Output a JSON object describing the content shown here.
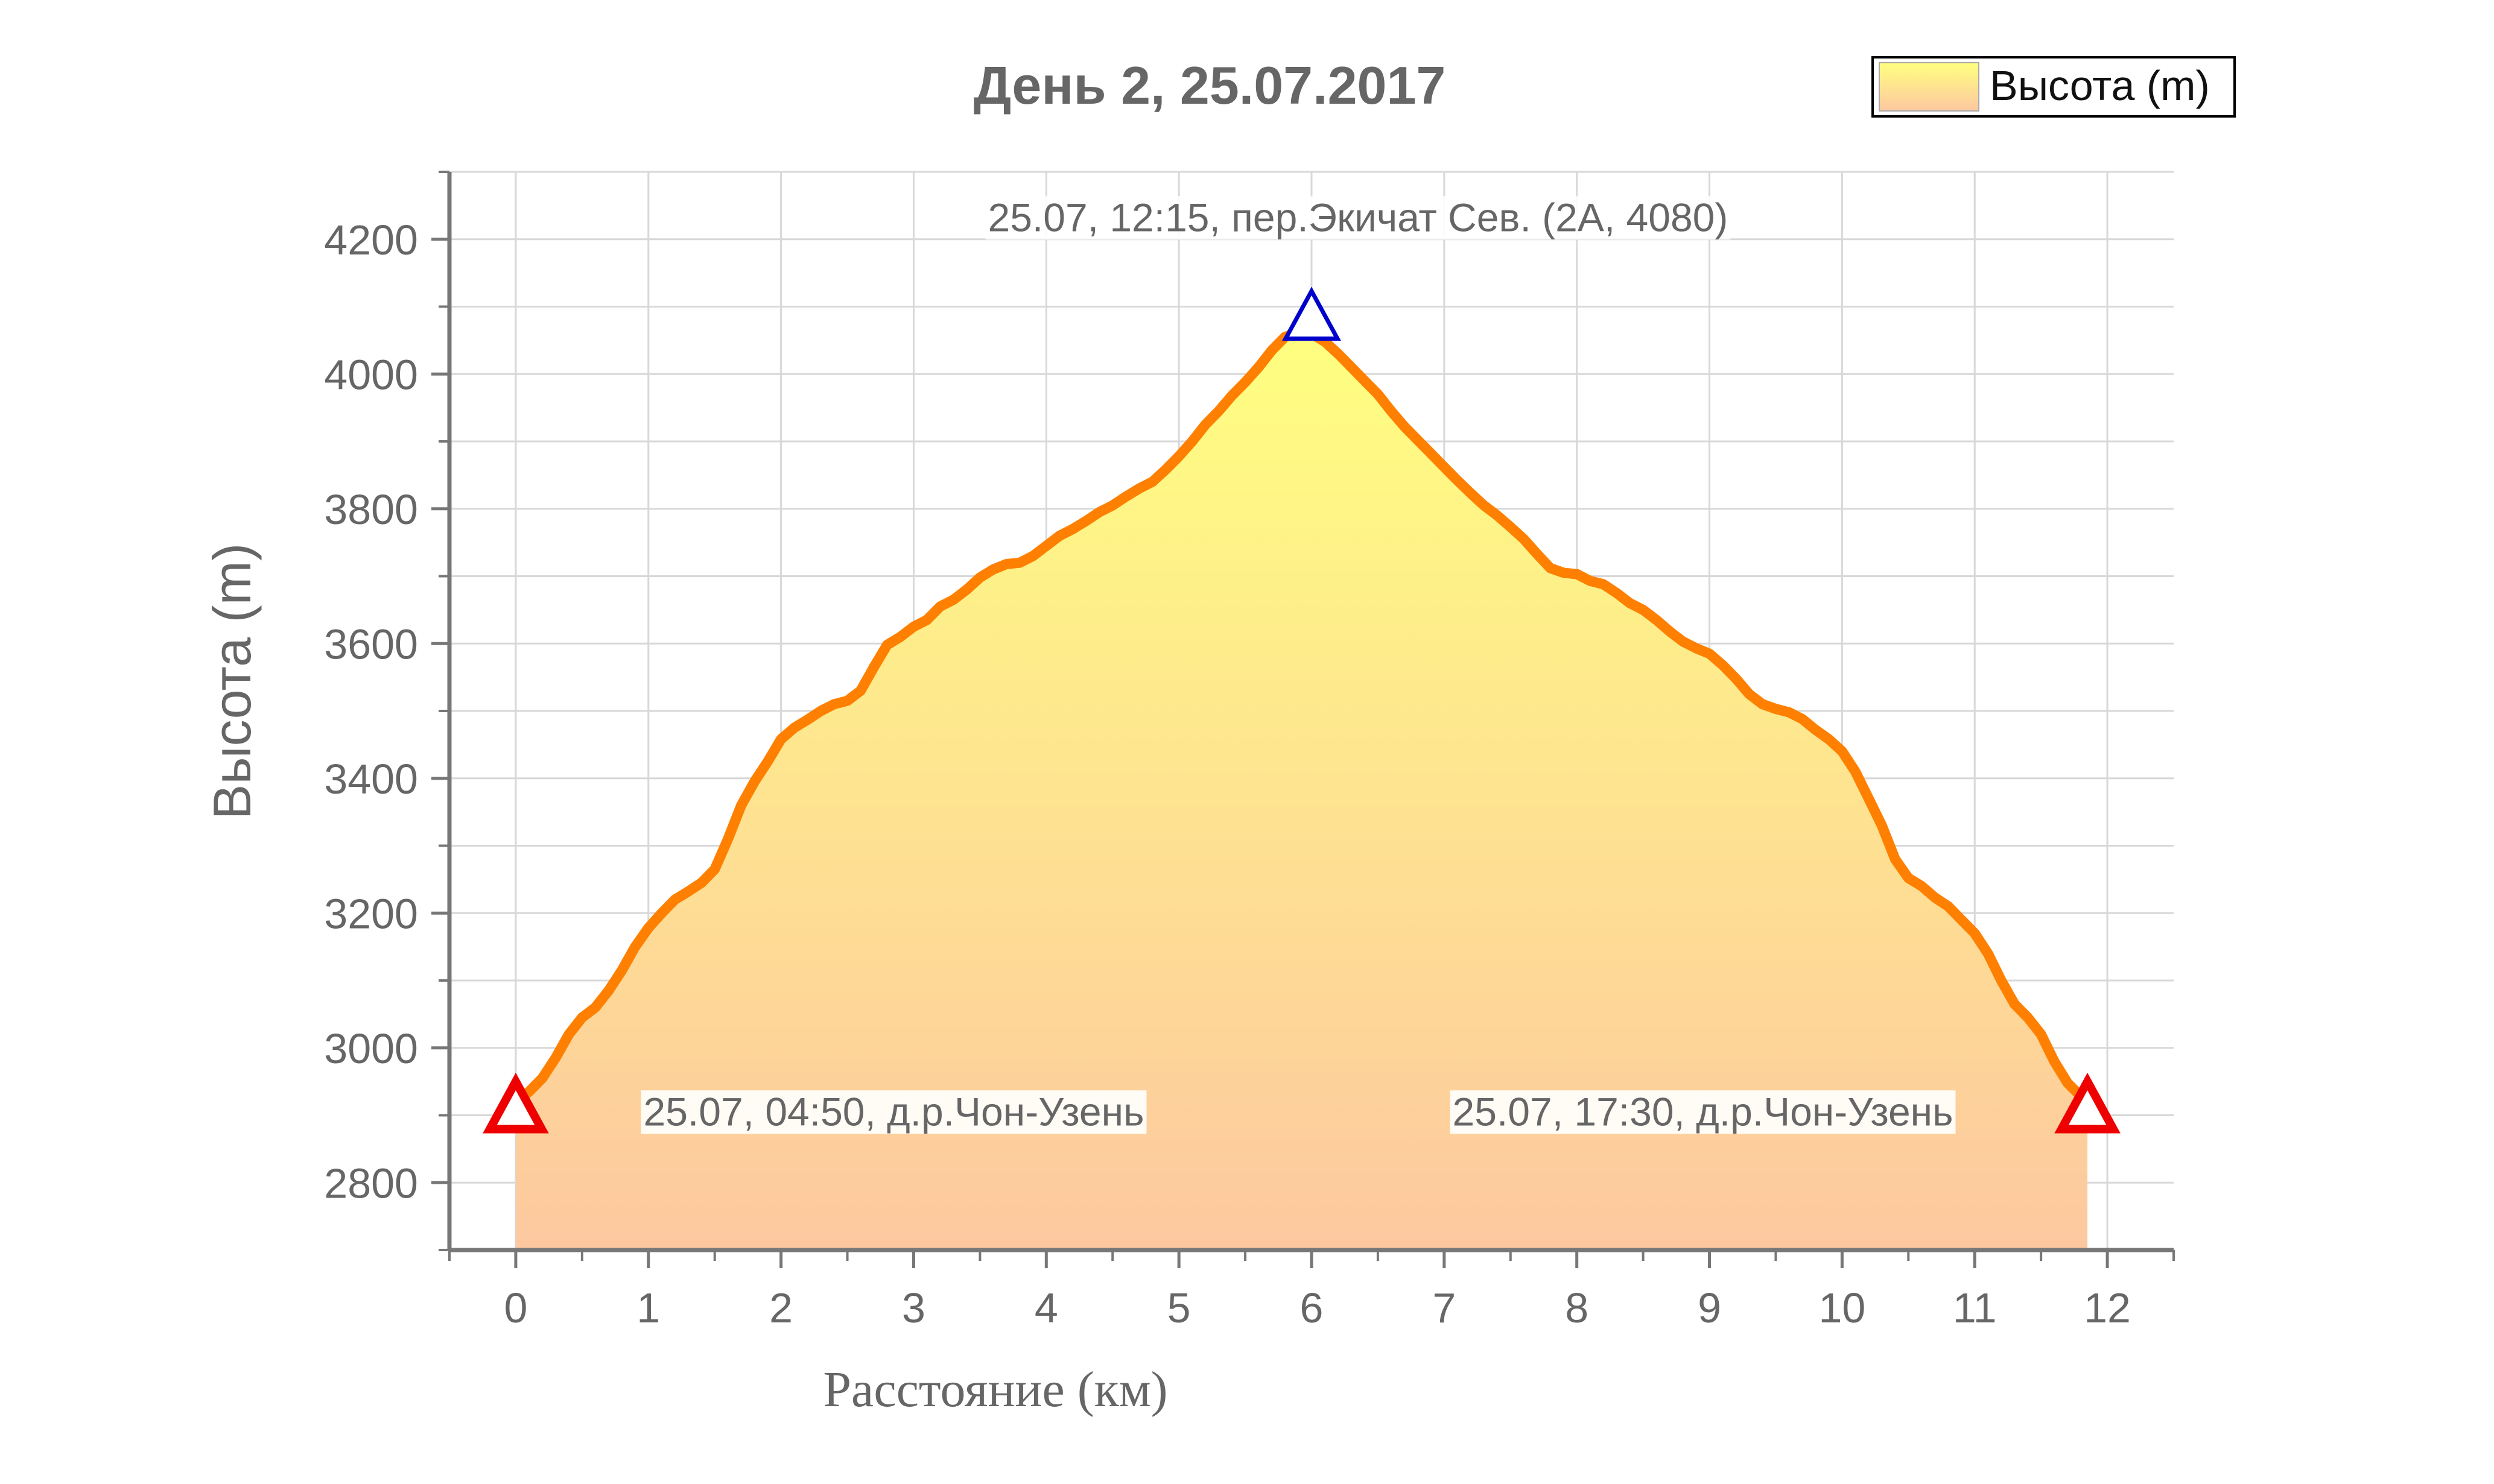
{
  "chart_data": {
    "type": "area",
    "title": "День 2, 25.07.2017",
    "xlabel": "Расстояние (км)",
    "ylabel": "Высота (m)",
    "xlim": [
      -0.5,
      12.5
    ],
    "ylim": [
      2700,
      4300
    ],
    "x_ticks": [
      "0",
      "1",
      "2",
      "3",
      "4",
      "5",
      "6",
      "7",
      "8",
      "9",
      "10",
      "11",
      "12"
    ],
    "y_ticks": [
      "2800",
      "3000",
      "3200",
      "3400",
      "3600",
      "3800",
      "4000",
      "4200"
    ],
    "grid": true,
    "legend": {
      "placement": "top-right",
      "label": "Высота (m)"
    },
    "colors": {
      "line": "#ff8000",
      "fill_top": "#ffff80",
      "fill_bottom": "#fdc8a0",
      "grid": "#d8d8d8",
      "axis": "#777777",
      "text": "#666666",
      "marker_red": "#ee0000",
      "marker_blue": "#0000cc"
    },
    "series": [
      {
        "name": "Высота (m)",
        "points": [
          [
            0.0,
            2920
          ],
          [
            0.1,
            2935
          ],
          [
            0.2,
            2955
          ],
          [
            0.3,
            2985
          ],
          [
            0.4,
            3020
          ],
          [
            0.5,
            3045
          ],
          [
            0.6,
            3060
          ],
          [
            0.7,
            3085
          ],
          [
            0.8,
            3115
          ],
          [
            0.9,
            3150
          ],
          [
            1.0,
            3178
          ],
          [
            1.1,
            3200
          ],
          [
            1.2,
            3220
          ],
          [
            1.3,
            3232
          ],
          [
            1.4,
            3245
          ],
          [
            1.5,
            3265
          ],
          [
            1.6,
            3310
          ],
          [
            1.7,
            3360
          ],
          [
            1.8,
            3395
          ],
          [
            1.9,
            3425
          ],
          [
            2.0,
            3458
          ],
          [
            2.1,
            3475
          ],
          [
            2.2,
            3487
          ],
          [
            2.3,
            3500
          ],
          [
            2.4,
            3510
          ],
          [
            2.5,
            3515
          ],
          [
            2.6,
            3530
          ],
          [
            2.7,
            3565
          ],
          [
            2.8,
            3598
          ],
          [
            2.9,
            3610
          ],
          [
            3.0,
            3625
          ],
          [
            3.1,
            3635
          ],
          [
            3.2,
            3655
          ],
          [
            3.3,
            3665
          ],
          [
            3.4,
            3680
          ],
          [
            3.5,
            3698
          ],
          [
            3.6,
            3710
          ],
          [
            3.7,
            3718
          ],
          [
            3.8,
            3720
          ],
          [
            3.9,
            3730
          ],
          [
            4.0,
            3745
          ],
          [
            4.1,
            3760
          ],
          [
            4.2,
            3770
          ],
          [
            4.3,
            3782
          ],
          [
            4.4,
            3795
          ],
          [
            4.5,
            3805
          ],
          [
            4.6,
            3818
          ],
          [
            4.7,
            3830
          ],
          [
            4.8,
            3840
          ],
          [
            4.9,
            3858
          ],
          [
            5.0,
            3878
          ],
          [
            5.1,
            3900
          ],
          [
            5.2,
            3925
          ],
          [
            5.3,
            3945
          ],
          [
            5.4,
            3968
          ],
          [
            5.5,
            3988
          ],
          [
            5.6,
            4010
          ],
          [
            5.7,
            4035
          ],
          [
            5.8,
            4055
          ],
          [
            5.9,
            4062
          ],
          [
            6.0,
            4060
          ],
          [
            6.1,
            4048
          ],
          [
            6.2,
            4030
          ],
          [
            6.3,
            4010
          ],
          [
            6.4,
            3990
          ],
          [
            6.5,
            3970
          ],
          [
            6.6,
            3945
          ],
          [
            6.7,
            3922
          ],
          [
            6.8,
            3902
          ],
          [
            6.9,
            3882
          ],
          [
            7.0,
            3862
          ],
          [
            7.1,
            3842
          ],
          [
            7.2,
            3823
          ],
          [
            7.3,
            3805
          ],
          [
            7.4,
            3790
          ],
          [
            7.5,
            3773
          ],
          [
            7.6,
            3755
          ],
          [
            7.7,
            3733
          ],
          [
            7.8,
            3712
          ],
          [
            7.9,
            3705
          ],
          [
            8.0,
            3703
          ],
          [
            8.1,
            3693
          ],
          [
            8.2,
            3688
          ],
          [
            8.3,
            3675
          ],
          [
            8.4,
            3660
          ],
          [
            8.5,
            3650
          ],
          [
            8.6,
            3635
          ],
          [
            8.7,
            3618
          ],
          [
            8.8,
            3603
          ],
          [
            8.9,
            3593
          ],
          [
            9.0,
            3585
          ],
          [
            9.1,
            3568
          ],
          [
            9.2,
            3548
          ],
          [
            9.3,
            3525
          ],
          [
            9.4,
            3510
          ],
          [
            9.5,
            3503
          ],
          [
            9.6,
            3498
          ],
          [
            9.7,
            3488
          ],
          [
            9.8,
            3472
          ],
          [
            9.9,
            3458
          ],
          [
            10.0,
            3440
          ],
          [
            10.1,
            3410
          ],
          [
            10.2,
            3370
          ],
          [
            10.3,
            3330
          ],
          [
            10.4,
            3280
          ],
          [
            10.5,
            3252
          ],
          [
            10.6,
            3240
          ],
          [
            10.7,
            3223
          ],
          [
            10.8,
            3210
          ],
          [
            10.9,
            3190
          ],
          [
            11.0,
            3170
          ],
          [
            11.1,
            3140
          ],
          [
            11.2,
            3100
          ],
          [
            11.3,
            3065
          ],
          [
            11.4,
            3045
          ],
          [
            11.5,
            3020
          ],
          [
            11.6,
            2980
          ],
          [
            11.7,
            2948
          ],
          [
            11.8,
            2928
          ],
          [
            11.85,
            2920
          ]
        ]
      }
    ],
    "markers": [
      {
        "x": 0.0,
        "y": 2913,
        "shape": "triangle",
        "color": "#ee0000"
      },
      {
        "x": 6.0,
        "y": 4086,
        "shape": "triangle",
        "color": "#0000cc"
      },
      {
        "x": 11.85,
        "y": 2913,
        "shape": "triangle",
        "color": "#ee0000"
      }
    ],
    "annotations": [
      {
        "text": "25.07, 12:15, пер.Экичат Сев. (2А, 4080)",
        "x": 6.35,
        "y": 4212
      },
      {
        "text": "25.07, 04:50, д.р.Чон-Узень",
        "x": 2.85,
        "y": 2885
      },
      {
        "text": "25.07, 17:30, д.р.Чон-Узень",
        "x": 8.95,
        "y": 2885
      }
    ]
  }
}
